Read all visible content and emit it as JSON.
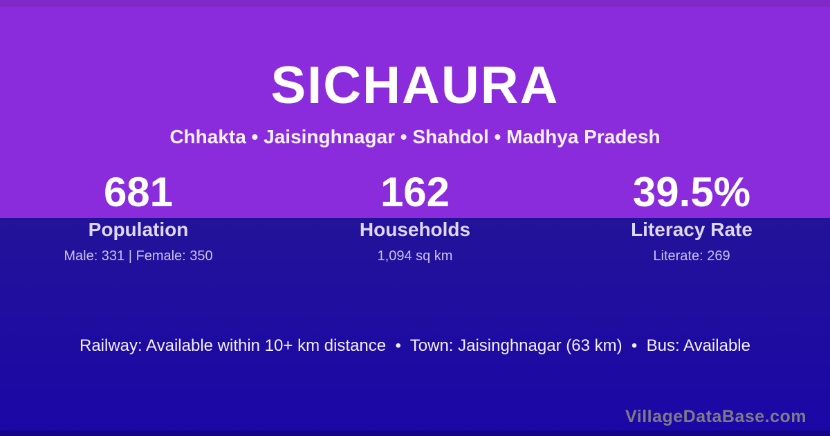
{
  "card": {
    "title": "SICHAURA",
    "location_breadcrumb": "Chhakta • Jaisinghnagar • Shahdol • Madhya Pradesh"
  },
  "stats": [
    {
      "value": "681",
      "label": "Population",
      "detail": "Male: 331 | Female: 350"
    },
    {
      "value": "162",
      "label": "Households",
      "detail": "1,094 sq km"
    },
    {
      "value": "39.5%",
      "label": "Literacy Rate",
      "detail": "Literate: 269"
    }
  ],
  "footer": {
    "amenities_line": "Railway: Available within 10+ km distance  •  Town: Jaisinghnagar (63 km)  •  Bus: Available",
    "watermark": "VillageDataBase.com"
  },
  "colors": {
    "top_strip": "#8128C9",
    "header_background": "#8A2BDC",
    "body_background_top": "#231399",
    "body_background_bottom": "#1B07A6",
    "bottom_strip": "#150488",
    "primary_text": "#FFFFFF",
    "label_text": "#DED8F4",
    "detail_text": "#C9C0EE",
    "watermark_text": "#7E7B87"
  }
}
